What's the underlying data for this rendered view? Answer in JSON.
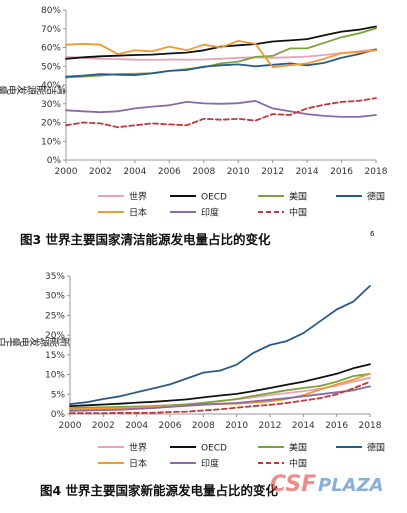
{
  "figure1": {
    "caption": "图3   世界主要国家清洁能源发电量占比的变化",
    "caption_sup": "6"
  },
  "figure2": {
    "caption": "图4   世界主要国家新能源发电量占比的变化"
  },
  "watermark": {
    "left": "CSF",
    "right": "PLAZA"
  },
  "chart_data": [
    {
      "type": "line",
      "ylabel": "清洁能源发电量占比",
      "xlabel": "",
      "xlim": [
        2000,
        2018
      ],
      "x_ticks": [
        2000,
        2002,
        2004,
        2006,
        2008,
        2010,
        2012,
        2014,
        2016,
        2018
      ],
      "ylim": [
        0,
        80
      ],
      "y_ticks": [
        0,
        10,
        20,
        30,
        40,
        50,
        60,
        70,
        80
      ],
      "y_tick_suffix": "%",
      "grid": false,
      "legend": "bottom",
      "x": [
        2000,
        2001,
        2002,
        2003,
        2004,
        2005,
        2006,
        2007,
        2008,
        2009,
        2010,
        2011,
        2012,
        2013,
        2014,
        2015,
        2016,
        2017,
        2018
      ],
      "series": [
        {
          "name": "世界",
          "color": "#e8a2b8",
          "dash": false,
          "values": [
            55,
            54.5,
            54,
            53.8,
            53.5,
            53.4,
            53.6,
            53.5,
            53.6,
            54,
            54.5,
            54.8,
            54.5,
            54.8,
            55.2,
            56,
            57,
            58,
            59
          ]
        },
        {
          "name": "OECD",
          "color": "#111111",
          "dash": false,
          "values": [
            54,
            54.8,
            55.3,
            55.6,
            56,
            56.2,
            56.8,
            57.3,
            58.5,
            60.5,
            61.2,
            61.8,
            63.2,
            63.8,
            64.5,
            66.5,
            68.5,
            69.5,
            71.2
          ]
        },
        {
          "name": "美国",
          "color": "#7aa13a",
          "dash": false,
          "values": [
            44,
            44.5,
            45,
            45.8,
            46,
            46.3,
            47.5,
            48.5,
            49.5,
            51.5,
            52.5,
            55,
            55.5,
            59.5,
            59.5,
            62.5,
            65.5,
            67.5,
            70.2
          ]
        },
        {
          "name": "德国",
          "color": "#2a5a86",
          "dash": false,
          "values": [
            44.5,
            45,
            45.8,
            45.5,
            45.3,
            46.2,
            47.5,
            48,
            49.8,
            50.5,
            51,
            50,
            50.8,
            51.5,
            50.5,
            51.8,
            54.5,
            56.5,
            59
          ]
        },
        {
          "name": "日本",
          "color": "#f09a33",
          "dash": false,
          "values": [
            61.5,
            62,
            61.5,
            56.5,
            58.5,
            58,
            60.5,
            58.5,
            61.5,
            60,
            63.5,
            62,
            49.5,
            50.5,
            51.5,
            54,
            57,
            57.5,
            58.5
          ]
        },
        {
          "name": "印度",
          "color": "#8a6aa6",
          "dash": false,
          "values": [
            26.5,
            26,
            25.5,
            26,
            27.5,
            28.5,
            29.2,
            31,
            30.2,
            30,
            30.3,
            31.5,
            27.5,
            26,
            24.5,
            23.5,
            23,
            23,
            24
          ]
        },
        {
          "name": "中国",
          "color": "#c0393b",
          "dash": true,
          "values": [
            18.5,
            20,
            19.5,
            17.5,
            18.5,
            19.5,
            19,
            18.5,
            22,
            21.5,
            22,
            21,
            24.5,
            24,
            27.5,
            29.5,
            31,
            31.5,
            33
          ]
        }
      ]
    },
    {
      "type": "line",
      "ylabel": "新能源发电量占比",
      "xlabel": "",
      "xlim": [
        2000,
        2018
      ],
      "x_ticks": [
        2000,
        2002,
        2004,
        2006,
        2008,
        2010,
        2012,
        2014,
        2016,
        2018
      ],
      "ylim": [
        0,
        35
      ],
      "y_ticks": [
        0,
        5,
        10,
        15,
        20,
        25,
        30,
        35
      ],
      "y_tick_suffix": "%",
      "grid": false,
      "legend": "bottom",
      "x": [
        2000,
        2001,
        2002,
        2003,
        2004,
        2005,
        2006,
        2007,
        2008,
        2009,
        2010,
        2011,
        2012,
        2013,
        2014,
        2015,
        2016,
        2017,
        2018
      ],
      "series": [
        {
          "name": "世界",
          "color": "#e8a2b8",
          "dash": false,
          "values": [
            1.2,
            1.3,
            1.4,
            1.6,
            1.8,
            2,
            2.2,
            2.5,
            2.9,
            3.3,
            3.7,
            4.2,
            4.8,
            5.3,
            5.8,
            6.4,
            7.2,
            8.2,
            9.2
          ]
        },
        {
          "name": "OECD",
          "color": "#111111",
          "dash": false,
          "values": [
            2,
            2.2,
            2.4,
            2.6,
            2.9,
            3.1,
            3.4,
            3.7,
            4.2,
            4.7,
            5.1,
            5.8,
            6.6,
            7.4,
            8.2,
            9.2,
            10.2,
            11.6,
            12.6
          ]
        },
        {
          "name": "美国",
          "color": "#7aa13a",
          "dash": false,
          "values": [
            1.5,
            1.6,
            1.7,
            1.8,
            1.9,
            2,
            2.2,
            2.4,
            2.8,
            3.3,
            3.8,
            4.6,
            5.3,
            6,
            6.6,
            7.1,
            8.2,
            9.6,
            10.2
          ]
        },
        {
          "name": "德国",
          "color": "#2a5a86",
          "dash": false,
          "values": [
            2.5,
            3,
            3.8,
            4.5,
            5.5,
            6.5,
            7.5,
            9,
            10.5,
            11,
            12.5,
            15.5,
            17.5,
            18.5,
            20.5,
            23.5,
            26.5,
            28.5,
            32.5
          ]
        },
        {
          "name": "日本",
          "color": "#f09a33",
          "dash": false,
          "values": [
            1.2,
            1.3,
            1.4,
            1.5,
            1.6,
            1.8,
            2,
            2.1,
            2.3,
            2.5,
            2.6,
            2.9,
            3.2,
            3.8,
            4.8,
            6.2,
            7.5,
            8.7,
            10.2
          ]
        },
        {
          "name": "印度",
          "color": "#8a6aa6",
          "dash": false,
          "values": [
            0.8,
            0.9,
            1,
            1.1,
            1.3,
            1.5,
            1.8,
            2.1,
            2.4,
            2.6,
            2.8,
            3.2,
            3.6,
            4,
            4.5,
            5,
            5.5,
            6,
            7
          ]
        },
        {
          "name": "中国",
          "color": "#c0393b",
          "dash": true,
          "values": [
            0.2,
            0.2,
            0.2,
            0.3,
            0.3,
            0.3,
            0.5,
            0.6,
            0.9,
            1.2,
            1.6,
            2,
            2.3,
            2.8,
            3.4,
            4,
            5,
            6.5,
            8.2
          ]
        }
      ]
    }
  ]
}
